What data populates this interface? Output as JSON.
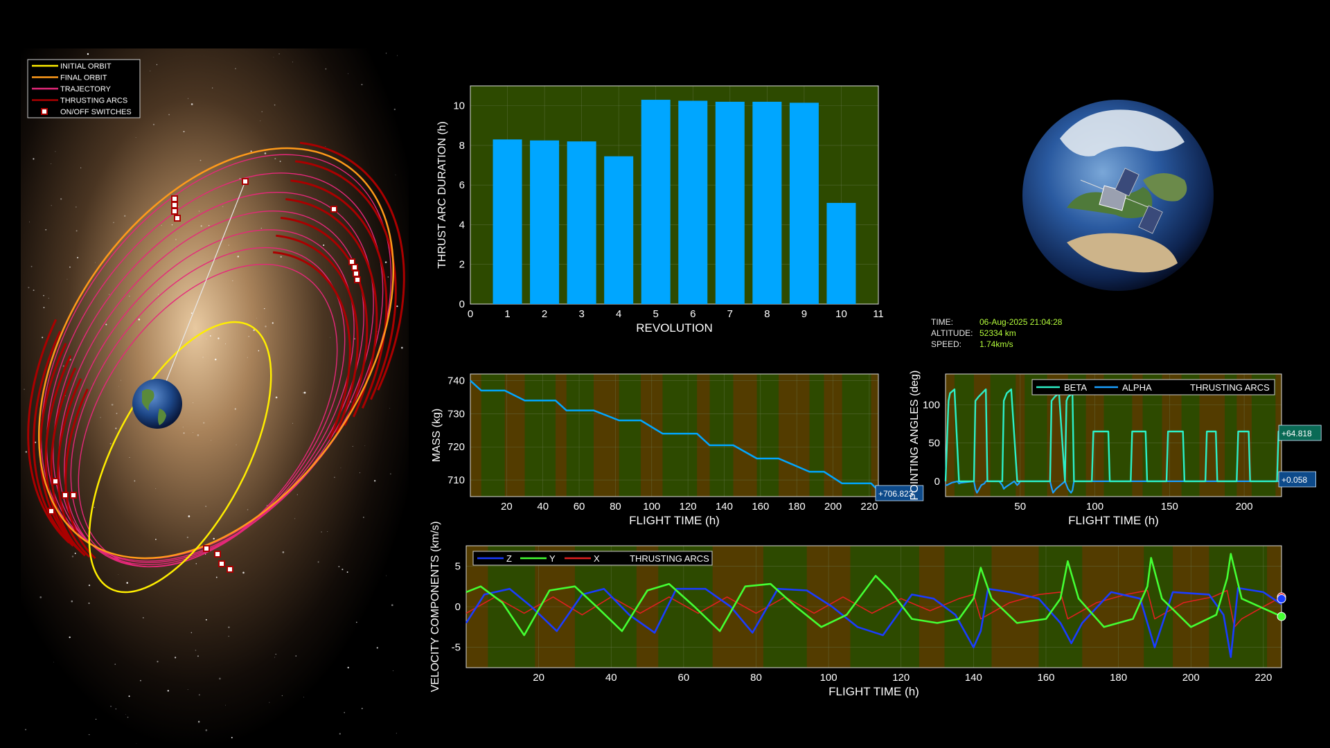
{
  "colors": {
    "background": "#000000",
    "plot_bg": "#2d4a00",
    "thrust_band": "#5a3a00",
    "bar": "#00a6ff",
    "grid": "#6a7a50",
    "initial_orbit": "#ffee00",
    "final_orbit": "#ff9a1a",
    "trajectory": "#e6287a",
    "thrust_arc": "#aa0000",
    "beta": "#2cf0c8",
    "alpha": "#1aa0ff",
    "vz": "#1a3cff",
    "vy": "#44ff33",
    "vx": "#e02020",
    "readout_box": "#0d4a8a",
    "readout_box_green": "#0a6a55"
  },
  "orbit_legend": {
    "items": [
      {
        "label": "INITIAL ORBIT",
        "color": "#ffee00",
        "kind": "line"
      },
      {
        "label": "FINAL ORBIT",
        "color": "#ff9a1a",
        "kind": "line"
      },
      {
        "label": "TRAJECTORY",
        "color": "#e6287a",
        "kind": "line"
      },
      {
        "label": "THRUSTING ARCS",
        "color": "#aa0000",
        "kind": "line"
      },
      {
        "label": "ON/OFF SWITCHES",
        "color": "#aa0000",
        "kind": "square"
      }
    ]
  },
  "status": {
    "time_label": "TIME:",
    "time_value": "06-Aug-2025 21:04:28",
    "altitude_label": "ALTITUDE:",
    "altitude_value": "52334 km",
    "speed_label": "SPEED:",
    "speed_value": "1.74km/s"
  },
  "icons": [
    "earth-globe-icon",
    "spacecraft-icon"
  ],
  "chart_data": [
    {
      "id": "thrust",
      "type": "bar",
      "categories": [
        1,
        2,
        3,
        4,
        5,
        6,
        7,
        8,
        9,
        10
      ],
      "values": [
        8.3,
        8.25,
        8.2,
        7.45,
        10.3,
        10.25,
        10.2,
        10.2,
        10.15,
        5.1
      ],
      "xlabel": "REVOLUTION",
      "ylabel": "THRUST ARC DURATION (h)",
      "xlim": [
        0,
        11
      ],
      "ylim": [
        0,
        11
      ],
      "xticks": [
        0,
        1,
        2,
        3,
        4,
        5,
        6,
        7,
        8,
        9,
        10,
        11
      ],
      "yticks": [
        0,
        2,
        4,
        6,
        8,
        10
      ],
      "grid": true
    },
    {
      "id": "mass",
      "type": "line",
      "xlabel": "FLIGHT TIME (h)",
      "ylabel": "MASS (kg)",
      "xlim": [
        0,
        225
      ],
      "ylim": [
        705,
        742
      ],
      "xticks": [
        20,
        40,
        60,
        80,
        100,
        120,
        140,
        160,
        180,
        200,
        220
      ],
      "yticks": [
        710,
        720,
        730,
        740
      ],
      "grid": true,
      "series": [
        {
          "x": [
            0,
            6,
            19,
            30,
            47,
            53,
            68,
            82,
            94,
            106,
            125,
            132,
            145,
            158,
            170,
            187,
            195,
            205,
            221,
            225
          ],
          "y": [
            740,
            737,
            737,
            734,
            734,
            731,
            731,
            728,
            728,
            724,
            724,
            720.5,
            720.5,
            716.5,
            716.5,
            712.5,
            712.5,
            709,
            709,
            706.8
          ]
        }
      ],
      "readout": "+706.823"
    },
    {
      "id": "pointing",
      "type": "line",
      "xlabel": "FLIGHT TIME (h)",
      "ylabel": "POINTING ANGLES (deg)",
      "xlim": [
        0,
        225
      ],
      "ylim": [
        -20,
        140
      ],
      "xticks": [
        50,
        100,
        150,
        200
      ],
      "yticks": [
        0,
        50,
        100
      ],
      "grid": true,
      "legend": [
        "BETA",
        "ALPHA",
        "THRUSTING ARCS"
      ],
      "series": [
        {
          "name": "BETA",
          "x": [
            0,
            2,
            3,
            6,
            9,
            10,
            11,
            19,
            20,
            22,
            27,
            28,
            29,
            38,
            39,
            41,
            44,
            48,
            49,
            50,
            70,
            71,
            73,
            76,
            80,
            81,
            82,
            85,
            86,
            98,
            99,
            100,
            109,
            110,
            111,
            124,
            125,
            126,
            134,
            135,
            136,
            148,
            149,
            150,
            159,
            160,
            161,
            174,
            175,
            176,
            181,
            182,
            183,
            195,
            196,
            197,
            203,
            204,
            205,
            222,
            223,
            224,
            225
          ],
          "y": [
            0,
            105,
            115,
            120,
            0,
            0,
            0,
            0,
            105,
            110,
            120,
            0,
            0,
            0,
            105,
            115,
            120,
            0,
            0,
            0,
            0,
            105,
            110,
            115,
            0,
            105,
            110,
            115,
            0,
            0,
            65,
            65,
            65,
            0,
            0,
            0,
            65,
            65,
            65,
            0,
            0,
            0,
            65,
            65,
            65,
            0,
            0,
            0,
            65,
            65,
            65,
            0,
            0,
            0,
            65,
            65,
            65,
            0,
            0,
            0,
            65,
            65,
            64.8
          ]
        },
        {
          "name": "ALPHA",
          "x": [
            0,
            1,
            4,
            8,
            9,
            10,
            19,
            20,
            21,
            22,
            24,
            26,
            27,
            36,
            38,
            39,
            40,
            46,
            48,
            49,
            50,
            70,
            71,
            72,
            74,
            80,
            82,
            84,
            85,
            86,
            100,
            105,
            110,
            120,
            130,
            140,
            150,
            160,
            170,
            180,
            190,
            200,
            210,
            220,
            224,
            225
          ],
          "y": [
            -5,
            -5,
            -2,
            0,
            -3,
            -2,
            0,
            -10,
            -15,
            -12,
            -5,
            -3,
            0,
            0,
            -5,
            -10,
            -8,
            0,
            -5,
            -3,
            0,
            0,
            -8,
            -15,
            -10,
            0,
            -10,
            -15,
            -12,
            0,
            0,
            0,
            0,
            0,
            0,
            0,
            0,
            0,
            0,
            0,
            0,
            0,
            0,
            0,
            0.058,
            0.058
          ]
        }
      ],
      "readout_beta": "+64.818",
      "readout_alpha": "+0.058"
    },
    {
      "id": "velocity",
      "type": "line",
      "xlabel": "FLIGHT TIME (h)",
      "ylabel": "VELOCITY COMPONENTS (km/s)",
      "xlim": [
        0,
        225
      ],
      "ylim": [
        -7.5,
        7.5
      ],
      "xticks": [
        20,
        40,
        60,
        80,
        100,
        120,
        140,
        160,
        180,
        200,
        220
      ],
      "yticks": [
        -5,
        0,
        5
      ],
      "grid": true,
      "legend": [
        "Z",
        "Y",
        "X",
        "THRUSTING ARCS"
      ],
      "series": [
        {
          "name": "Z",
          "x": [
            0,
            5,
            12,
            18,
            25,
            32,
            38,
            45,
            52,
            58,
            66,
            73,
            79,
            86,
            94,
            101,
            108,
            115,
            123,
            129,
            135,
            140,
            142,
            144,
            150,
            158,
            164,
            167,
            170,
            178,
            186,
            188,
            190,
            195,
            205,
            209,
            211,
            213,
            220,
            225
          ],
          "y": [
            -2,
            1.5,
            2.2,
            0,
            -3,
            1.5,
            2.2,
            -1,
            -3.2,
            2.2,
            2.2,
            0,
            -3.2,
            2.2,
            2.0,
            0,
            -2.5,
            -3.5,
            1.5,
            1.0,
            -1,
            -5,
            -3,
            2.2,
            1.8,
            1.0,
            -2,
            -4.5,
            -2,
            1.8,
            1.0,
            -2,
            -5,
            1.8,
            1.5,
            -1,
            -6.2,
            2.3,
            1.8,
            0.3
          ]
        },
        {
          "name": "Y",
          "x": [
            0,
            4,
            10,
            16,
            23,
            30,
            36,
            43,
            50,
            56,
            63,
            70,
            77,
            84,
            91,
            98,
            105,
            110,
            113,
            117,
            123,
            130,
            136,
            140,
            142,
            145,
            152,
            160,
            164,
            166,
            169,
            176,
            184,
            188,
            189,
            192,
            200,
            207,
            210,
            211,
            214,
            225
          ],
          "y": [
            1.8,
            2.5,
            0.5,
            -3.5,
            2,
            2.5,
            0,
            -3,
            2,
            2.8,
            0,
            -3,
            2.5,
            2.8,
            0,
            -2.5,
            -1,
            2,
            3.8,
            2,
            -1.5,
            -2,
            -1.5,
            1,
            4.8,
            1,
            -2,
            -1.5,
            1,
            5.6,
            1,
            -2.5,
            -1.5,
            2.5,
            6.0,
            1,
            -2.5,
            -1,
            3.5,
            6.5,
            1,
            -1.2
          ]
        },
        {
          "name": "X",
          "x": [
            0,
            8,
            16,
            24,
            32,
            40,
            48,
            56,
            64,
            72,
            80,
            88,
            96,
            104,
            112,
            120,
            128,
            136,
            140,
            142,
            144,
            150,
            158,
            164,
            166,
            168,
            174,
            182,
            188,
            190,
            192,
            198,
            206,
            210,
            212,
            214,
            220,
            225
          ],
          "y": [
            -0.8,
            1.2,
            -0.8,
            1.2,
            -1,
            1.2,
            -0.8,
            1.2,
            -0.8,
            1.2,
            -0.8,
            1.2,
            -0.8,
            1.2,
            -0.8,
            1,
            -0.5,
            1,
            1.5,
            -1.5,
            -1,
            0.5,
            1.5,
            1.8,
            -1.5,
            -1,
            0.5,
            1.5,
            2.0,
            -1.5,
            -1,
            0.5,
            1.2,
            2.0,
            -2.5,
            -1.5,
            0,
            1.2
          ]
        }
      ]
    }
  ],
  "thrust_arcs": [
    [
      0,
      6
    ],
    [
      19,
      30
    ],
    [
      47,
      53
    ],
    [
      68,
      82
    ],
    [
      94,
      106
    ],
    [
      125,
      132
    ],
    [
      145,
      158
    ],
    [
      170,
      187
    ],
    [
      195,
      205
    ],
    [
      221,
      225
    ]
  ]
}
